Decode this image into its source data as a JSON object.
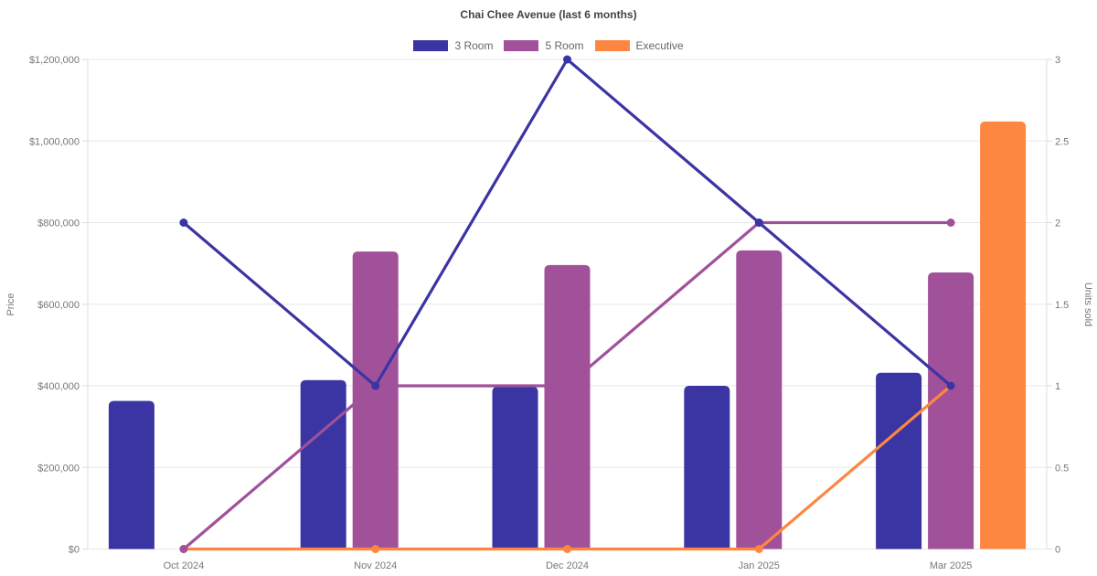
{
  "chart_data": {
    "type": "bar",
    "subtype": "combo: grouped bars = average price (left axis), lines with point markers = units sold (right axis)",
    "title": "Chai Chee Avenue (last 6 months)",
    "categories": [
      "Oct 2024",
      "Nov 2024",
      "Dec 2024",
      "Jan 2025",
      "Mar 2025"
    ],
    "series": [
      {
        "name": "3 Room",
        "color": "#3b34a3",
        "bar_prices": [
          363000,
          414000,
          398000,
          400000,
          432000
        ],
        "line_units": [
          2,
          1,
          3,
          2,
          1
        ]
      },
      {
        "name": "5 Room",
        "color": "#a0519a",
        "bar_prices": [
          null,
          729000,
          696000,
          732000,
          678000
        ],
        "line_units": [
          0,
          1,
          1,
          2,
          2
        ]
      },
      {
        "name": "Executive",
        "color": "#fd8640",
        "bar_prices": [
          null,
          null,
          null,
          null,
          1048000
        ],
        "line_units": [
          0,
          0,
          0,
          0,
          1
        ]
      }
    ],
    "y_left": {
      "label": "Price",
      "min": 0,
      "max": 1200000,
      "ticks": [
        "$0",
        "$200,000",
        "$400,000",
        "$600,000",
        "$800,000",
        "$1,000,000",
        "$1,200,000"
      ]
    },
    "y_right": {
      "label": "Units sold",
      "min": 0,
      "max": 3,
      "ticks": [
        "0",
        "0.5",
        "1",
        "1.5",
        "2",
        "2.5",
        "3"
      ]
    },
    "legend": {
      "position": "top",
      "items": [
        "3 Room",
        "5 Room",
        "Executive"
      ]
    },
    "grid": "horizontal only",
    "colors": {
      "gridline": "#e7e7e7",
      "axis_border": "#dcdcdc",
      "tick_text": "#777777",
      "title_text": "#434343",
      "legend_text": "#666666",
      "background": "#ffffff"
    }
  }
}
